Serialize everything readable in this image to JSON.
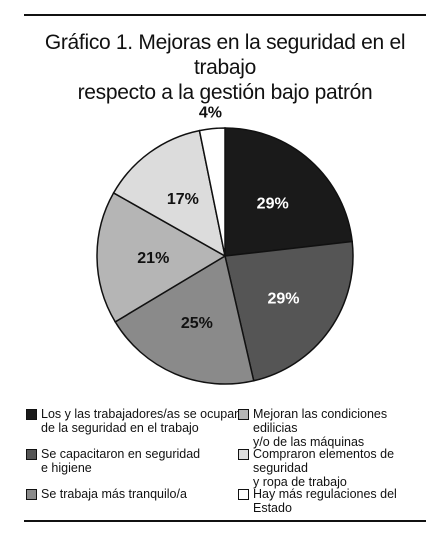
{
  "title_line1": "Gráfico 1. Mejoras en la seguridad en el trabajo",
  "title_line2": "respecto a la gestión bajo patrón",
  "chart_data": {
    "type": "pie",
    "title": "Gráfico 1. Mejoras en la seguridad en el trabajo respecto a la gestión bajo patrón",
    "slices": [
      {
        "label": "Los y las trabajadores/as se ocupan de la seguridad en el trabajo",
        "value": 29,
        "display": "29%",
        "color": "#1a1a1a",
        "text_color": "#ffffff"
      },
      {
        "label": "Se capacitaron en seguridad e higiene",
        "value": 29,
        "display": "29%",
        "color": "#555555",
        "text_color": "#ffffff"
      },
      {
        "label": "Se trabaja más tranquilo/a",
        "value": 25,
        "display": "25%",
        "color": "#8a8a8a",
        "text_color": "#111111"
      },
      {
        "label": "Mejoran las condiciones edilicias y/o de las máquinas",
        "value": 21,
        "display": "21%",
        "color": "#b5b5b5",
        "text_color": "#111111"
      },
      {
        "label": "Compraron elementos de seguridad y ropa de trabajo",
        "value": 17,
        "display": "17%",
        "color": "#dcdcdc",
        "text_color": "#111111"
      },
      {
        "label": "Hay más regulaciones del Estado",
        "value": 4,
        "display": "4%",
        "color": "#ffffff",
        "text_color": "#111111"
      }
    ],
    "legend": [
      {
        "text": "Los y las trabajadores/as se ocupan\nde la seguridad en el trabajo",
        "color": "#1a1a1a"
      },
      {
        "text": "Mejoran las condiciones edilicias\ny/o de las máquinas",
        "color": "#b5b5b5"
      },
      {
        "text": "Se capacitaron en seguridad\ne higiene",
        "color": "#555555"
      },
      {
        "text": "Compraron elementos de seguridad\ny ropa de trabajo",
        "color": "#dcdcdc"
      },
      {
        "text": "Se trabaja más tranquilo/a",
        "color": "#8a8a8a"
      },
      {
        "text": "Hay más regulaciones del Estado",
        "color": "#ffffff"
      }
    ]
  }
}
